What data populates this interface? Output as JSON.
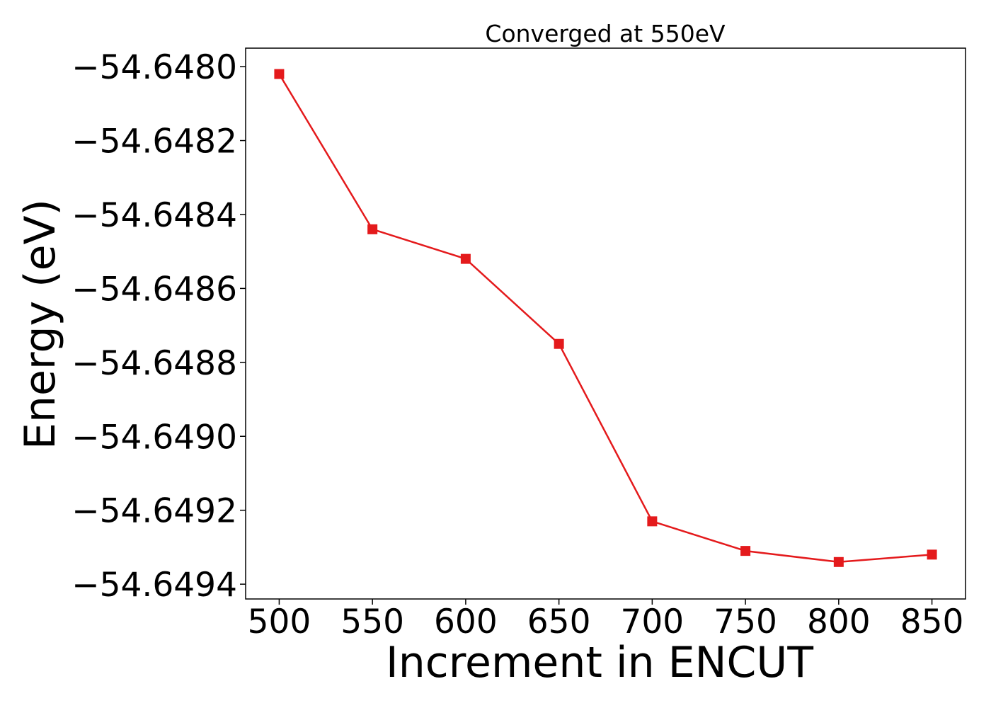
{
  "chart_data": {
    "type": "line",
    "title": "Converged at 550eV",
    "xlabel": "Increment in ENCUT",
    "ylabel": "Energy (eV)",
    "x": [
      500,
      550,
      600,
      650,
      700,
      750,
      800,
      850
    ],
    "xticks": [
      500,
      550,
      600,
      650,
      700,
      750,
      800,
      850
    ],
    "xtick_labels": [
      "500",
      "550",
      "600",
      "650",
      "700",
      "750",
      "800",
      "850"
    ],
    "xlim": [
      482,
      868
    ],
    "yticks": [
      -54.648,
      -54.6482,
      -54.6484,
      -54.6486,
      -54.6488,
      -54.649,
      -54.6492,
      -54.6494
    ],
    "ytick_labels": [
      "−54.6480",
      "−54.6482",
      "−54.6484",
      "−54.6486",
      "−54.6488",
      "−54.6490",
      "−54.6492",
      "−54.6494"
    ],
    "ylim": [
      -54.64944,
      -54.64795
    ],
    "grid": false,
    "marker": "square",
    "color": "#e41a1c",
    "series": [
      {
        "values": [
          -54.64802,
          -54.64844,
          -54.64852,
          -54.64875,
          -54.64923,
          -54.64931,
          -54.64934,
          -54.64932
        ]
      }
    ]
  }
}
